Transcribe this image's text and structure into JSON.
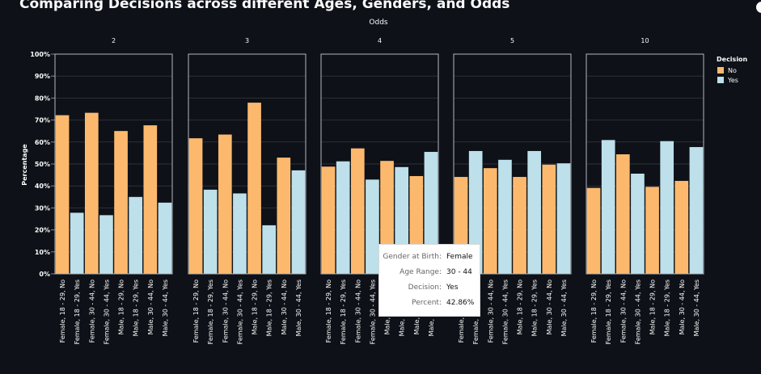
{
  "chart_data": {
    "type": "bar",
    "title": "Comparing Decisions across different Ages, Genders, and Odds",
    "facet_label": "Odds",
    "facets": [
      "2",
      "3",
      "4",
      "5",
      "10"
    ],
    "categories": [
      "Female, 18 - 29, No",
      "Female, 18 - 29, Yes",
      "Female, 30 - 44, No",
      "Female, 30 - 44, Yes",
      "Male, 18 - 29, No",
      "Male, 18 - 29, Yes",
      "Male, 30 - 44, No",
      "Male, 30 - 44, Yes"
    ],
    "bar_decisions": [
      "No",
      "Yes",
      "No",
      "Yes",
      "No",
      "Yes",
      "No",
      "Yes"
    ],
    "ylabel": "Percentage",
    "yticks": [
      "0%",
      "10%",
      "20%",
      "30%",
      "40%",
      "50%",
      "60%",
      "70%",
      "80%",
      "90%",
      "100%"
    ],
    "ylim": [
      0,
      100
    ],
    "grid": true,
    "legend": {
      "title": "Decision",
      "position": "right",
      "entries": [
        {
          "label": "No",
          "color": "#fcb96e"
        },
        {
          "label": "Yes",
          "color": "#bde0eb"
        }
      ]
    },
    "panels": [
      {
        "odds": "2",
        "values": [
          72.2,
          27.8,
          73.3,
          26.7,
          65.0,
          35.0,
          67.6,
          32.4
        ]
      },
      {
        "odds": "3",
        "values": [
          61.7,
          38.3,
          63.4,
          36.6,
          77.9,
          22.1,
          52.9,
          47.1
        ]
      },
      {
        "odds": "4",
        "values": [
          48.8,
          51.2,
          57.1,
          42.9,
          51.4,
          48.6,
          44.5,
          55.5
        ]
      },
      {
        "odds": "5",
        "values": [
          44.1,
          55.9,
          48.1,
          51.9,
          44.1,
          55.9,
          49.7,
          50.3
        ]
      },
      {
        "odds": "10",
        "values": [
          39.1,
          60.9,
          54.4,
          45.6,
          39.6,
          60.4,
          42.3,
          57.7
        ]
      }
    ]
  },
  "tooltip": {
    "rows": [
      {
        "key": "Gender at Birth:",
        "value": "Female"
      },
      {
        "key": "Age Range:",
        "value": "30 - 44"
      },
      {
        "key": "Decision:",
        "value": "Yes"
      },
      {
        "key": "Percent:",
        "value": "42.86%"
      }
    ]
  }
}
